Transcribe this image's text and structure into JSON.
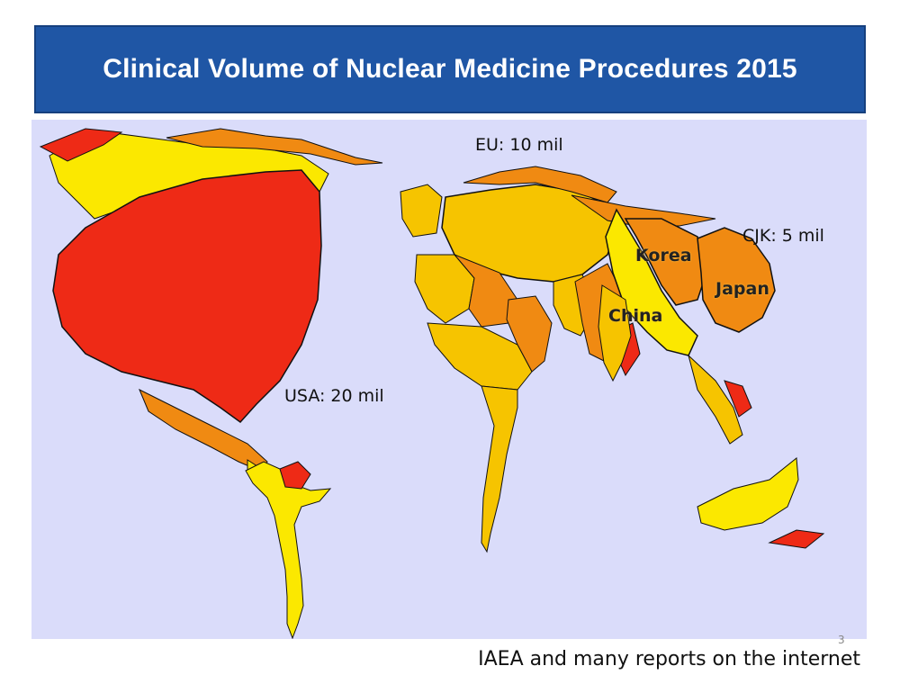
{
  "slide": {
    "title": "Clinical Volume of Nuclear Medicine Procedures 2015",
    "slide_number": "3",
    "source": "IAEA and many reports on the internet"
  },
  "map": {
    "type": "cartogram",
    "labels": {
      "usa": "USA: 20 mil",
      "eu": "EU: 10 mil",
      "cjk": "CJK: 5 mil",
      "korea": "Korea",
      "japan": "Japan",
      "china": "China"
    },
    "colors": {
      "background": "#dadcfa",
      "high": "#ee2a16",
      "mid": "#f08a12",
      "low": "#f6c400",
      "lowest": "#fbe800"
    }
  }
}
